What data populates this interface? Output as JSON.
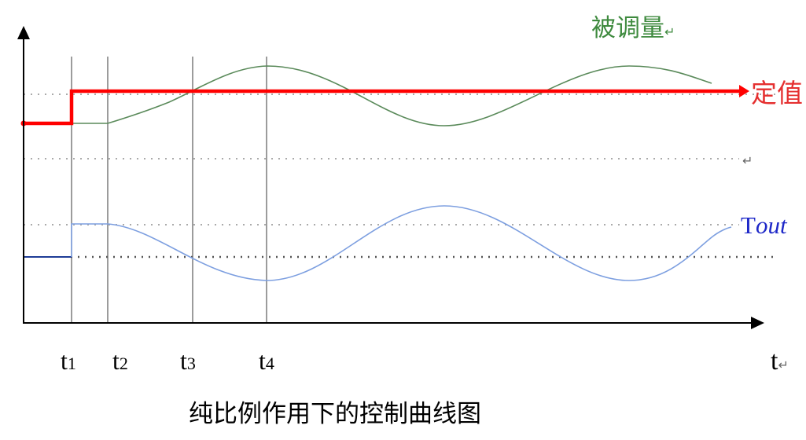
{
  "diagram": {
    "caption": "纯比例作用下的控制曲线图",
    "labels": {
      "controlled_variable": "被调量",
      "setpoint": "定值",
      "output_T": "T",
      "output_rest": "out",
      "time_axis": "t",
      "return_mark": "↵"
    },
    "time_markers": [
      {
        "base": "t",
        "sub": "1"
      },
      {
        "base": "t",
        "sub": "2"
      },
      {
        "base": "t",
        "sub": "3"
      },
      {
        "base": "t",
        "sub": "4"
      }
    ],
    "colors": {
      "axis": "#000000",
      "setpoint": "#ff0000",
      "controlled": "#5a8a5a",
      "controlled_label": "#3e8a3e",
      "output": "#7d9fe0",
      "output_label": "#1e28c8",
      "output_step": "#1e3c96",
      "marker_line": "#666666",
      "grid_dots": "#aaaaaa",
      "caption": "#000000"
    }
  }
}
